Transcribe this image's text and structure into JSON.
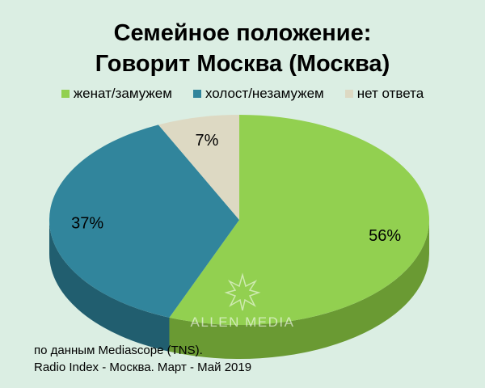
{
  "chart_data": {
    "type": "pie",
    "title": [
      "Семейное положение:",
      "Говорит Москва (Москва)"
    ],
    "categories": [
      "женат/замужем",
      "холост/незамужем",
      "нет ответа"
    ],
    "values": [
      56,
      37,
      7
    ],
    "labels": [
      "56%",
      "37%",
      "7%"
    ],
    "colors": [
      "#92d050",
      "#31859c",
      "#ddd9c3"
    ],
    "side_colors": [
      "#6a9a33",
      "#215e6f",
      "#a8a58f"
    ],
    "legend_position": "top",
    "style": "3d"
  },
  "watermark": "ALLEN MEDIA",
  "source": {
    "line1": "по данным Mediascope (TNS).",
    "line2": "Radio Index - Москва. Март - Май 2019"
  }
}
